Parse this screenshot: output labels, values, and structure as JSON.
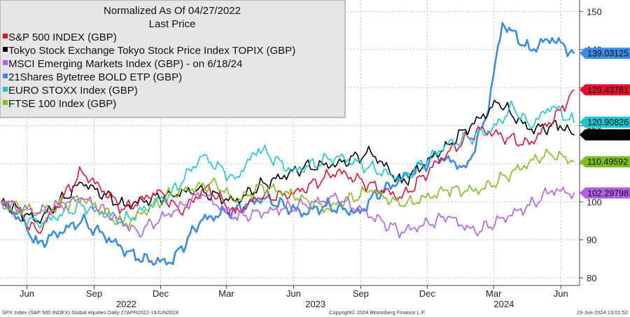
{
  "chart_data": {
    "type": "line",
    "title": "Normalized As Of 04/27/2022",
    "subtitle": "Last Price",
    "xlabel": "",
    "ylabel": "",
    "ylim": [
      78,
      153
    ],
    "y_ticks": [
      80,
      90,
      100,
      110,
      120,
      130,
      140,
      150
    ],
    "x_ticks": [
      "Jun",
      "Sep",
      "Dec",
      "Mar",
      "Jun",
      "Sep",
      "Dec",
      "Mar",
      "Jun"
    ],
    "x_tick_dates": [
      "2022-06-01",
      "2022-09-01",
      "2022-12-01",
      "2023-03-01",
      "2023-06-01",
      "2023-09-01",
      "2023-12-01",
      "2024-03-01",
      "2024-06-01"
    ],
    "years": [
      "2022",
      "2023",
      "2024"
    ],
    "year_dates": [
      "2022-10-15",
      "2023-07-01",
      "2024-03-15"
    ],
    "xlim": [
      "2022-04-27",
      "2024-06-19"
    ],
    "grid": true,
    "legend_position": "top-left",
    "series": [
      {
        "name": "S&P 500 INDEX (GBP)",
        "color": "#e8112d",
        "last": "129.43781",
        "points": [
          [
            "2022-04-27",
            100
          ],
          [
            "2022-05-20",
            97
          ],
          [
            "2022-06-16",
            92
          ],
          [
            "2022-08-15",
            108
          ],
          [
            "2022-10-12",
            98
          ],
          [
            "2022-11-30",
            103
          ],
          [
            "2022-12-28",
            97
          ],
          [
            "2023-02-02",
            104
          ],
          [
            "2023-03-13",
            97
          ],
          [
            "2023-04-14",
            101
          ],
          [
            "2023-06-01",
            102
          ],
          [
            "2023-07-31",
            108
          ],
          [
            "2023-10-27",
            101
          ],
          [
            "2023-12-29",
            113
          ],
          [
            "2024-02-12",
            119
          ],
          [
            "2024-04-19",
            115
          ],
          [
            "2024-05-31",
            124
          ],
          [
            "2024-06-19",
            129.4
          ]
        ]
      },
      {
        "name": "Tokyo Stock Exchange Tokyo Stock Price Index TOPIX (GBP)",
        "color": "#000000",
        "last": "117.56296",
        "points": [
          [
            "2022-04-27",
            100
          ],
          [
            "2022-06-16",
            95
          ],
          [
            "2022-08-15",
            105
          ],
          [
            "2022-10-12",
            99
          ],
          [
            "2022-12-15",
            102
          ],
          [
            "2023-01-20",
            103
          ],
          [
            "2023-03-13",
            100
          ],
          [
            "2023-04-14",
            104
          ],
          [
            "2023-06-15",
            109
          ],
          [
            "2023-07-31",
            110
          ],
          [
            "2023-09-15",
            113
          ],
          [
            "2023-10-27",
            105
          ],
          [
            "2023-12-29",
            115
          ],
          [
            "2024-03-08",
            126
          ],
          [
            "2024-04-19",
            119
          ],
          [
            "2024-05-31",
            120
          ],
          [
            "2024-06-19",
            117.6
          ]
        ]
      },
      {
        "name": "MSCI Emerging Markets Index (GBP) -  on 6/18/24",
        "color": "#b35fe6",
        "last": "102.29798",
        "points": [
          [
            "2022-04-27",
            100
          ],
          [
            "2022-06-16",
            97
          ],
          [
            "2022-08-15",
            101
          ],
          [
            "2022-10-31",
            92
          ],
          [
            "2023-01-27",
            102
          ],
          [
            "2023-03-13",
            96
          ],
          [
            "2023-05-15",
            98
          ],
          [
            "2023-07-31",
            101
          ],
          [
            "2023-10-27",
            92
          ],
          [
            "2023-12-29",
            96
          ],
          [
            "2024-02-05",
            92
          ],
          [
            "2024-04-19",
            99
          ],
          [
            "2024-05-20",
            103
          ],
          [
            "2024-06-19",
            102.3
          ]
        ]
      },
      {
        "name": "21Shares Bytetree BOLD ETP (GBP)",
        "color": "#3b8ce8",
        "last": "139.03125",
        "points": [
          [
            "2022-04-27",
            100
          ],
          [
            "2022-05-20",
            96
          ],
          [
            "2022-06-16",
            89
          ],
          [
            "2022-08-15",
            95
          ],
          [
            "2022-09-15",
            91
          ],
          [
            "2022-10-31",
            85
          ],
          [
            "2022-12-15",
            84
          ],
          [
            "2023-01-25",
            95
          ],
          [
            "2023-03-13",
            98
          ],
          [
            "2023-04-20",
            101
          ],
          [
            "2023-06-15",
            97
          ],
          [
            "2023-07-15",
            99
          ],
          [
            "2023-08-31",
            97
          ],
          [
            "2023-09-15",
            101
          ],
          [
            "2023-10-27",
            106
          ],
          [
            "2023-12-15",
            112
          ],
          [
            "2024-01-23",
            109
          ],
          [
            "2024-02-20",
            122
          ],
          [
            "2024-03-13",
            147
          ],
          [
            "2024-04-19",
            140
          ],
          [
            "2024-05-20",
            143
          ],
          [
            "2024-06-19",
            139
          ]
        ]
      },
      {
        "name": "EURO STOXX Index (GBP)",
        "color": "#19c6cf",
        "last": "120.90826",
        "points": [
          [
            "2022-04-27",
            100
          ],
          [
            "2022-05-20",
            97
          ],
          [
            "2022-06-16",
            94
          ],
          [
            "2022-08-15",
            99
          ],
          [
            "2022-10-12",
            95
          ],
          [
            "2022-12-15",
            102
          ],
          [
            "2023-01-27",
            112
          ],
          [
            "2023-03-13",
            106
          ],
          [
            "2023-04-14",
            114
          ],
          [
            "2023-05-31",
            108
          ],
          [
            "2023-07-31",
            112
          ],
          [
            "2023-10-27",
            106
          ],
          [
            "2023-12-29",
            115
          ],
          [
            "2024-02-28",
            119
          ],
          [
            "2024-03-28",
            125
          ],
          [
            "2024-04-19",
            120
          ],
          [
            "2024-05-20",
            125
          ],
          [
            "2024-06-19",
            120.9
          ]
        ]
      },
      {
        "name": "FTSE 100 Index (GBP)",
        "color": "#7dbf1e",
        "last": "110.49592",
        "points": [
          [
            "2022-04-27",
            100
          ],
          [
            "2022-06-16",
            97
          ],
          [
            "2022-08-15",
            101
          ],
          [
            "2022-10-12",
            94
          ],
          [
            "2022-12-15",
            102
          ],
          [
            "2023-02-15",
            105
          ],
          [
            "2023-03-13",
            100
          ],
          [
            "2023-04-20",
            104
          ],
          [
            "2023-06-15",
            101
          ],
          [
            "2023-07-15",
            98
          ],
          [
            "2023-09-15",
            103
          ],
          [
            "2023-10-27",
            99
          ],
          [
            "2023-12-29",
            103
          ],
          [
            "2024-02-12",
            103
          ],
          [
            "2024-05-15",
            113
          ],
          [
            "2024-06-19",
            110.5
          ]
        ]
      }
    ]
  },
  "footer": {
    "left": "SPX Index (S&P 500 INDEX) Global  equities  Daily 27APR2022-19JUN2024",
    "center": "Copyright© 2024 Bloomberg Finance L.P.",
    "right": "19-Jun-2024 13:01:52"
  }
}
